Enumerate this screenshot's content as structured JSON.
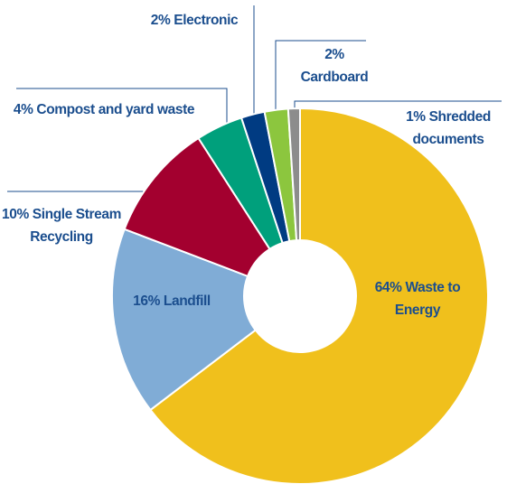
{
  "chart_data": {
    "type": "donut",
    "categories": [
      "Waste to Energy",
      "Landfill",
      "Single Stream Recycling",
      "Compost and yard waste",
      "Electronic",
      "Cardboard",
      "Shredded documents"
    ],
    "values": [
      64,
      16,
      10,
      4,
      2,
      2,
      1
    ],
    "value_labels": [
      "64%",
      "16%",
      "10%",
      "4%",
      "2%",
      "2%",
      "1%"
    ],
    "colors": [
      "#f0c01c",
      "#80acd6",
      "#a3002f",
      "#00a07c",
      "#003b82",
      "#8cc63e",
      "#8c8c8c"
    ]
  }
}
